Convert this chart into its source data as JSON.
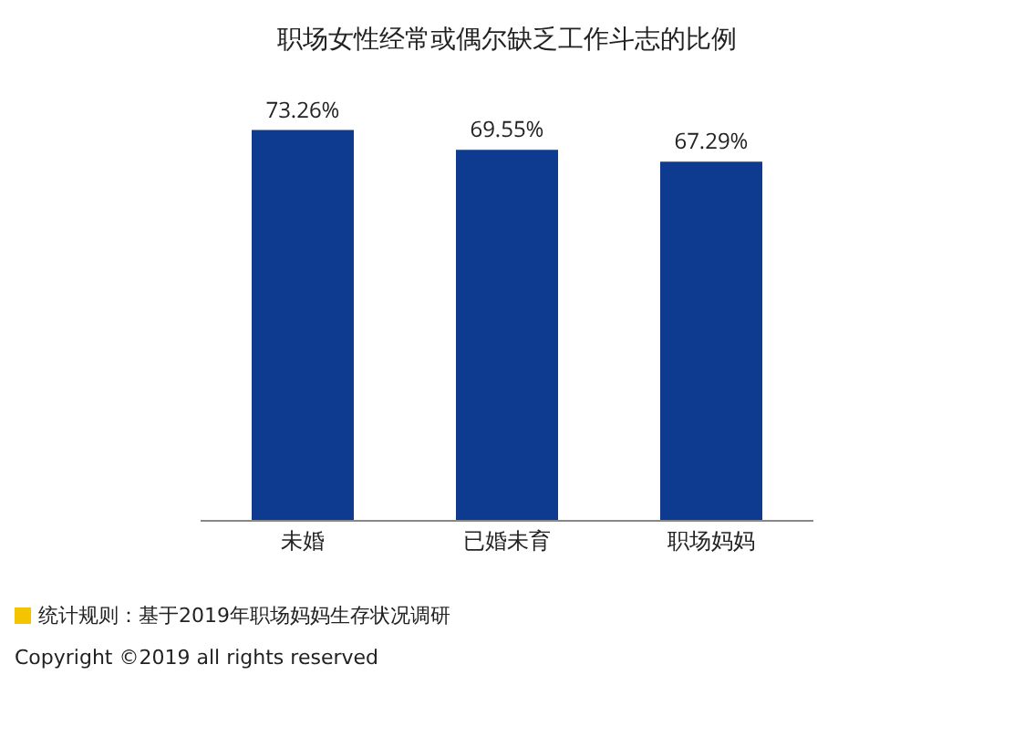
{
  "chart_data": {
    "type": "bar",
    "title": "职场女性经常或偶尔缺乏工作斗志的比例",
    "categories": [
      "未婚",
      "已婚未育",
      "职场妈妈"
    ],
    "values": [
      73.26,
      69.55,
      67.29
    ],
    "value_labels": [
      "73.26%",
      "69.55%",
      "67.29%"
    ],
    "color": "#0e3b8f",
    "tick_labels": "x",
    "annotations": [
      "统计规则：基于2019年职场妈妈生存状况调研",
      "Copyright ©2019 all rights reserved"
    ]
  }
}
